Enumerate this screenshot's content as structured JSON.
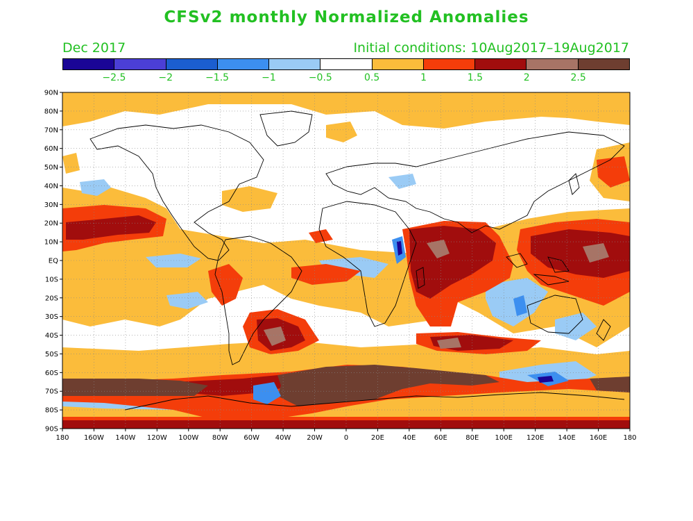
{
  "header": {
    "title": "CFSv2 monthly Normalized Anomalies",
    "month": "Dec 2017",
    "initial_conditions": "Initial conditions: 10Aug2017–19Aug2017"
  },
  "colorbar": {
    "colors": [
      "#1a0596",
      "#4b3fd6",
      "#1b5ed0",
      "#3c8ff0",
      "#9acbf5",
      "#ffffff",
      "#fbbc3b",
      "#f43d0a",
      "#a10d0d",
      "#a77466",
      "#6e3e30"
    ],
    "labels": [
      "−2.5",
      "−2",
      "−1.5",
      "−1",
      "−0.5",
      "0.5",
      "1",
      "1.5",
      "2",
      "2.5"
    ]
  },
  "map": {
    "lat_labels": [
      "90N",
      "80N",
      "70N",
      "60N",
      "50N",
      "40N",
      "30N",
      "20N",
      "10N",
      "EQ",
      "10S",
      "20S",
      "30S",
      "40S",
      "50S",
      "60S",
      "70S",
      "80S",
      "90S"
    ],
    "lon_labels": [
      "180",
      "160W",
      "140W",
      "120W",
      "100W",
      "80W",
      "60W",
      "40W",
      "20W",
      "0",
      "20E",
      "40E",
      "60E",
      "80E",
      "100E",
      "120E",
      "140E",
      "160E",
      "180"
    ]
  }
}
